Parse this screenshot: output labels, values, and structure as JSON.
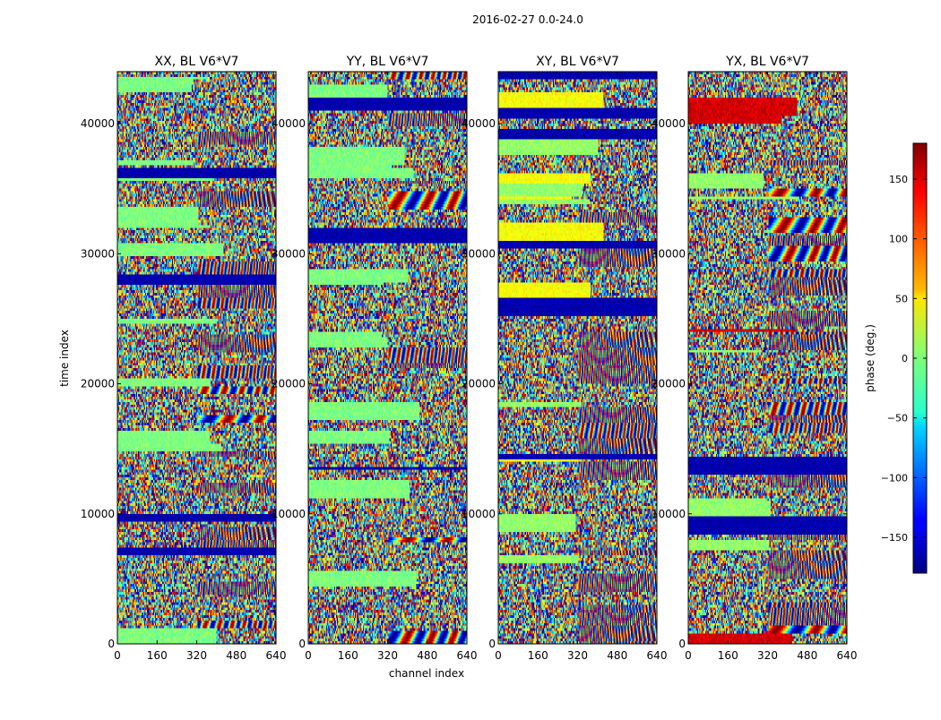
{
  "figure_title": "2016-02-27 0.0-24.0",
  "chart_data": {
    "type": "heatmap",
    "title": "2016-02-27 0.0-24.0",
    "xlabel": "channel index",
    "ylabel": "time index",
    "xlim": [
      0,
      640
    ],
    "ylim": [
      0,
      44000
    ],
    "x_ticks": [
      "0",
      "160",
      "320",
      "480",
      "640"
    ],
    "y_ticks": [
      "0",
      "10000",
      "20000",
      "30000",
      "40000"
    ],
    "panels": [
      {
        "title": "XX, BL V6*V7"
      },
      {
        "title": "YY, BL V6*V7"
      },
      {
        "title": "XY, BL V6*V7"
      },
      {
        "title": "YX, BL V6*V7"
      }
    ],
    "colorbar": {
      "label": "phase (deg.)",
      "range": [
        -180,
        180
      ],
      "colormap": "jet",
      "ticks": [
        "150",
        "100",
        "50",
        "0",
        "−50",
        "−100",
        "−150"
      ]
    },
    "grid": false
  }
}
